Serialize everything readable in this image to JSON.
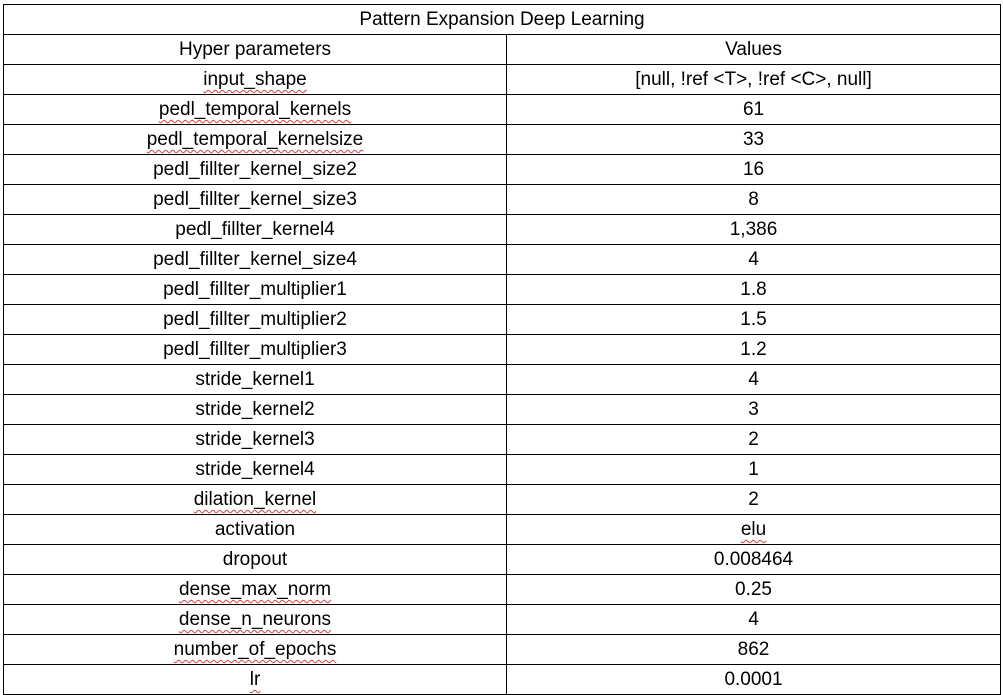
{
  "table": {
    "title": "Pattern Expansion Deep Learning",
    "headers": {
      "param": "Hyper parameters",
      "value": "Values"
    },
    "rows": [
      {
        "param": "input_shape",
        "value": "[null, !ref <T>, !ref <C>, null]"
      },
      {
        "param": "pedl_temporal_kernels",
        "value": "61"
      },
      {
        "param": "pedl_temporal_kernelsize",
        "value": "33"
      },
      {
        "param": "pedl_fillter_kernel_size2",
        "value": "16"
      },
      {
        "param": "pedl_fillter_kernel_size3",
        "value": "8"
      },
      {
        "param": "pedl_fillter_kernel4",
        "value": "1,386"
      },
      {
        "param": "pedl_fillter_kernel_size4",
        "value": "4"
      },
      {
        "param": "pedl_fillter_multiplier1",
        "value": "1.8"
      },
      {
        "param": "pedl_fillter_multiplier2",
        "value": "1.5"
      },
      {
        "param": "pedl_fillter_multiplier3",
        "value": "1.2"
      },
      {
        "param": "stride_kernel1",
        "value": "4"
      },
      {
        "param": "stride_kernel2",
        "value": "3"
      },
      {
        "param": "stride_kernel3",
        "value": "2"
      },
      {
        "param": "stride_kernel4",
        "value": "1"
      },
      {
        "param": "dilation_kernel",
        "value": "2"
      },
      {
        "param": "activation",
        "value": "elu"
      },
      {
        "param": "dropout",
        "value": "0.008464"
      },
      {
        "param": "dense_max_norm",
        "value": "0.25"
      },
      {
        "param": "dense_n_neurons",
        "value": "4"
      },
      {
        "param": "number_of_epochs",
        "value": "862"
      },
      {
        "param": "lr",
        "value": "0.0001"
      }
    ]
  }
}
